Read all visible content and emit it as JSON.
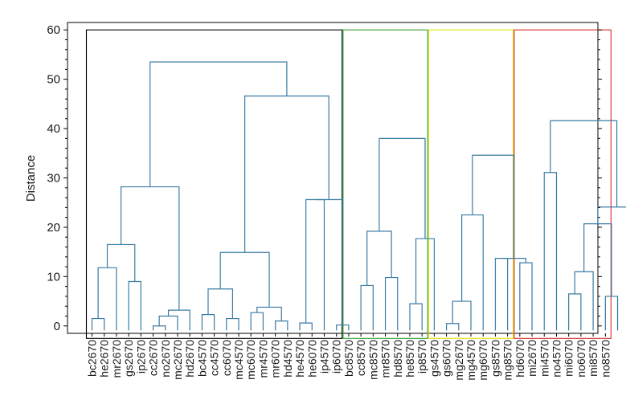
{
  "chart_data": {
    "type": "dendrogram",
    "title": "",
    "xlabel": "",
    "ylabel": "Distance",
    "ylim": [
      -1.5,
      61.5
    ],
    "yticks": [
      0,
      10,
      20,
      30,
      40,
      50,
      60
    ],
    "grid": false,
    "colors": {
      "branch": "#3a7ca5",
      "axis": "#000000",
      "group_boxes": [
        "#000000",
        "#2ca02c",
        "#e3e300",
        "#d62728"
      ]
    },
    "leaves": [
      "bc2670",
      "he2670",
      "mr2670",
      "gs2670",
      "ip2670",
      "cc2670",
      "no2670",
      "mc2670",
      "hd2670",
      "bc4570",
      "cc4570",
      "cc6070",
      "mc4570",
      "mc6070",
      "mr4570",
      "mr6070",
      "hd4570",
      "he4570",
      "he6070",
      "ip4570",
      "ip6070",
      "bc8570",
      "cc8570",
      "mc8570",
      "mr8570",
      "hd8570",
      "he8570",
      "ip8570",
      "gs4570",
      "gs6070",
      "mg2670",
      "mg4570",
      "mg6070",
      "gs8570",
      "mg8570",
      "hd6070",
      "mi2670",
      "mi4570",
      "no4570",
      "mi6070",
      "no6070",
      "mi8570",
      "no8570"
    ],
    "merges": [
      {
        "a": 0,
        "b": 1,
        "height": 1.5
      },
      {
        "a": "L0",
        "b": 2,
        "height": 11.8
      },
      {
        "a": 3,
        "b": 4,
        "height": 9.0
      },
      {
        "a": "L1",
        "b": "L2",
        "height": 16.5
      },
      {
        "a": 5,
        "b": 6,
        "height": 0.0
      },
      {
        "a": "L4",
        "b": 7,
        "height": 2.0
      },
      {
        "a": "L5",
        "b": 8,
        "height": 3.2
      },
      {
        "a": "L3",
        "b": "L6",
        "height": 28.2
      },
      {
        "a": 9,
        "b": 10,
        "height": 2.3
      },
      {
        "a": 11,
        "b": 12,
        "height": 1.5
      },
      {
        "a": "L8",
        "b": "L9",
        "height": 7.5
      },
      {
        "a": 13,
        "b": 14,
        "height": 2.7
      },
      {
        "a": 15,
        "b": 16,
        "height": 1.0
      },
      {
        "a": "L11",
        "b": "L12",
        "height": 3.8
      },
      {
        "a": "L10",
        "b": "L13",
        "height": 14.9
      },
      {
        "a": 17,
        "b": 18,
        "height": 0.6
      },
      {
        "a": "L15",
        "b": 19,
        "height": 25.6
      },
      {
        "a": 20,
        "b": 21,
        "height": 0.2
      },
      {
        "a": "L16",
        "b": "L17",
        "height": 25.6
      },
      {
        "a": "L14",
        "b": "L18",
        "height": 46.6
      },
      {
        "a": "L7",
        "b": "L19",
        "height": 53.5
      },
      {
        "a": 22,
        "b": 23,
        "height": 8.2
      },
      {
        "a": 24,
        "b": 25,
        "height": 9.8
      },
      {
        "a": "L21",
        "b": "L22",
        "height": 19.2
      },
      {
        "a": 26,
        "b": 27,
        "height": 4.5
      },
      {
        "a": "L24",
        "b": 28,
        "height": 17.7
      },
      {
        "a": "L23",
        "b": "L25",
        "height": 38.0
      },
      {
        "a": 29,
        "b": 30,
        "height": 0.5
      },
      {
        "a": "L27",
        "b": 31,
        "height": 5.0
      },
      {
        "a": "L28",
        "b": 32,
        "height": 22.5
      },
      {
        "a": 33,
        "b": 34,
        "height": 13.7
      },
      {
        "a": 35,
        "b": 36,
        "height": 12.8
      },
      {
        "a": "L30",
        "b": "L31",
        "height": 13.7
      },
      {
        "a": "L29",
        "b": "L32",
        "height": 34.6
      },
      {
        "a": 37,
        "b": 38,
        "height": 31.1
      },
      {
        "a": 39,
        "b": 40,
        "height": 6.5
      },
      {
        "a": "L35",
        "b": 41,
        "height": 11.0
      },
      {
        "a": 42,
        "b": 43,
        "height": 6.0
      },
      {
        "a": "L36",
        "b": "L37",
        "height": 20.7
      },
      {
        "a": 44,
        "b": 45,
        "height": 24.1
      },
      {
        "a": "L38",
        "b": "L39",
        "height": 24.1
      },
      {
        "a": "L34",
        "b": "L40",
        "height": 41.6
      }
    ],
    "groups": [
      {
        "first_leaf": 0,
        "last_leaf": 20,
        "top": 60,
        "color": "#000000"
      },
      {
        "first_leaf": 21,
        "last_leaf": 27,
        "top": 60,
        "color": "#2ca02c"
      },
      {
        "first_leaf": 28,
        "last_leaf": 34,
        "top": 60,
        "color": "#e3e300"
      },
      {
        "first_leaf": 35,
        "last_leaf": 42,
        "top": 60,
        "color": "#d62728"
      }
    ]
  }
}
